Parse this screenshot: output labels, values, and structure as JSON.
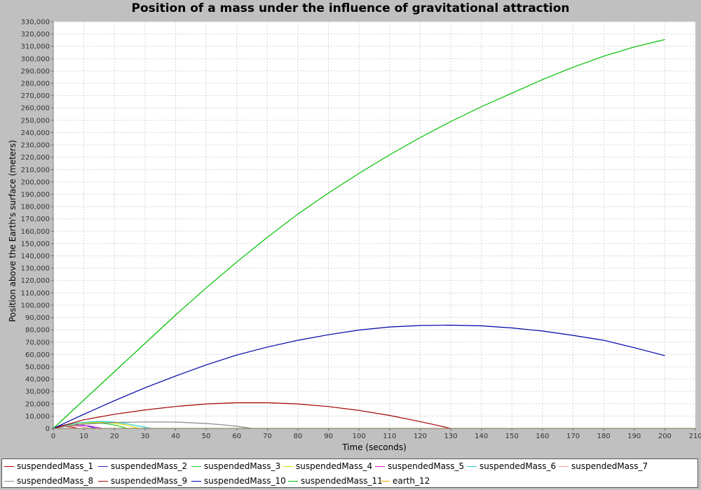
{
  "chart_data": {
    "type": "line",
    "title": "Position of a mass under the influence of gravitational attraction",
    "xlabel": "Time (seconds)",
    "ylabel": "Position above the Earth's surface (meters)",
    "xlim": [
      0,
      210
    ],
    "ylim": [
      0,
      330000
    ],
    "x_ticks": [
      "0",
      "10",
      "20",
      "30",
      "40",
      "50",
      "60",
      "70",
      "80",
      "90",
      "100",
      "110",
      "120",
      "130",
      "140",
      "150",
      "160",
      "170",
      "180",
      "190",
      "200",
      "210"
    ],
    "y_ticks": [
      "0",
      "10,000",
      "20,000",
      "30,000",
      "40,000",
      "50,000",
      "60,000",
      "70,000",
      "80,000",
      "90,000",
      "100,000",
      "110,000",
      "120,000",
      "130,000",
      "140,000",
      "150,000",
      "160,000",
      "170,000",
      "180,000",
      "190,000",
      "200,000",
      "210,000",
      "220,000",
      "230,000",
      "240,000",
      "250,000",
      "260,000",
      "270,000",
      "280,000",
      "290,000",
      "300,000",
      "310,000",
      "320,000",
      "330,000"
    ],
    "grid": true,
    "legend_position": "bottom",
    "series": [
      {
        "name": "suspendedMass_1",
        "color": "#cc0000",
        "x": [
          0,
          2,
          4,
          6,
          8
        ],
        "y": [
          0,
          1400,
          1600,
          1000,
          0
        ]
      },
      {
        "name": "suspendedMass_2",
        "color": "#2b2bd8",
        "x": [
          0,
          2,
          4,
          6,
          8,
          10,
          12,
          14
        ],
        "y": [
          0,
          1800,
          2900,
          3400,
          3300,
          2500,
          1300,
          0
        ]
      },
      {
        "name": "suspendedMass_3",
        "color": "#22cc22",
        "x": [
          0,
          3,
          6,
          9,
          12,
          15,
          18,
          21,
          24
        ],
        "y": [
          0,
          1900,
          3300,
          4200,
          4600,
          4400,
          3600,
          2200,
          0
        ]
      },
      {
        "name": "suspendedMass_4",
        "color": "#dddd00",
        "x": [
          0,
          4,
          8,
          12,
          16,
          20,
          24,
          28
        ],
        "y": [
          0,
          2300,
          3900,
          4800,
          4900,
          4200,
          2700,
          0
        ]
      },
      {
        "name": "suspendedMass_5",
        "color": "#dd22dd",
        "x": [
          0,
          4,
          8,
          12,
          16
        ],
        "y": [
          0,
          1700,
          2500,
          2000,
          0
        ]
      },
      {
        "name": "suspendedMass_6",
        "color": "#22cccc",
        "x": [
          0,
          4,
          8,
          12,
          16,
          20,
          24,
          28,
          32
        ],
        "y": [
          0,
          2500,
          4300,
          5300,
          5600,
          5100,
          3800,
          1900,
          0
        ]
      },
      {
        "name": "suspendedMass_7",
        "color": "#ff9999",
        "x": [
          0,
          3,
          6,
          9,
          12
        ],
        "y": [
          0,
          1400,
          2000,
          1500,
          0
        ]
      },
      {
        "name": "suspendedMass_8",
        "color": "#888888",
        "x": [
          0,
          5,
          10,
          20,
          30,
          40,
          50,
          55,
          60,
          65
        ],
        "y": [
          0,
          2100,
          3400,
          4800,
          5200,
          5100,
          4000,
          3000,
          1700,
          0
        ]
      },
      {
        "name": "suspendedMass_9",
        "color": "#a40000",
        "x": [
          0,
          10,
          20,
          30,
          40,
          50,
          60,
          70,
          80,
          90,
          100,
          110,
          120,
          125,
          130
        ],
        "y": [
          0,
          7000,
          11500,
          15000,
          17800,
          19800,
          20800,
          20800,
          19800,
          17700,
          14600,
          10500,
          5500,
          2800,
          0
        ]
      },
      {
        "name": "suspendedMass_10",
        "color": "#0000a8",
        "x": [
          0,
          10,
          20,
          30,
          40,
          50,
          60,
          70,
          80,
          90,
          100,
          110,
          120,
          130,
          140,
          150,
          160,
          170,
          180,
          190,
          200
        ],
        "y": [
          0,
          11500,
          22500,
          33000,
          42500,
          51500,
          59500,
          66000,
          71500,
          76000,
          79800,
          82300,
          83500,
          83800,
          83200,
          81500,
          79000,
          75500,
          71500,
          65500,
          59000
        ]
      },
      {
        "name": "suspendedMass_11",
        "color": "#00c000",
        "x": [
          0,
          10,
          20,
          30,
          40,
          50,
          60,
          70,
          80,
          90,
          100,
          110,
          120,
          130,
          140,
          150,
          160,
          170,
          180,
          190,
          200
        ],
        "y": [
          0,
          23000,
          46000,
          69000,
          92000,
          114000,
          135000,
          155000,
          174000,
          191000,
          207000,
          222000,
          236000,
          249000,
          261000,
          272000,
          283000,
          293000,
          302000,
          309500,
          315500
        ]
      },
      {
        "name": "earth_12",
        "color": "#e6a800",
        "x": [
          0,
          210
        ],
        "y": [
          0,
          0
        ]
      }
    ]
  }
}
